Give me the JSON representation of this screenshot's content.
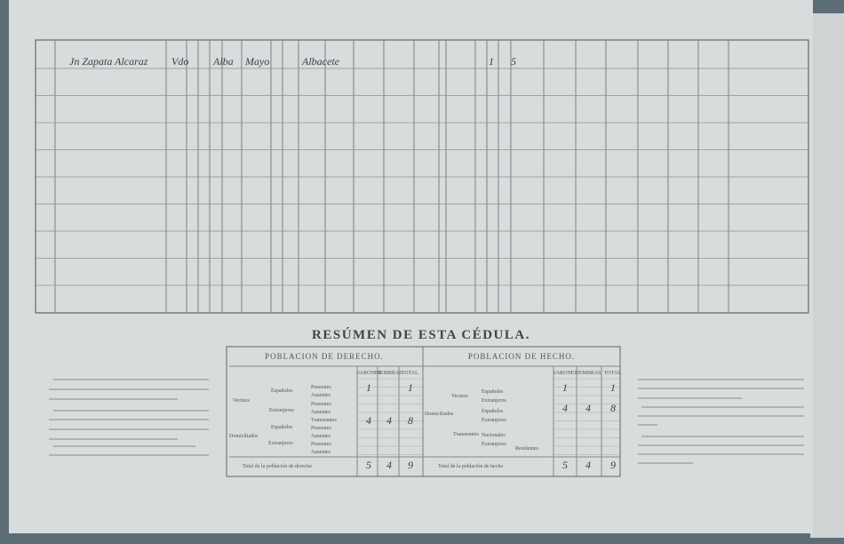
{
  "ledger": {
    "first_row": [
      "Jn Zapata Alcaraz",
      "Vdo",
      "Alba",
      "Mayo",
      "Albacete",
      "1",
      "5"
    ]
  },
  "resumen": {
    "title": "RESÚMEN DE ESTA CÉDULA.",
    "derecho": {
      "heading": "POBLACION DE DERECHO.",
      "columns": [
        "VARONES",
        "HEMBRAS",
        "TOTAL."
      ],
      "labels": [
        "Vecinos",
        "Domiciliados",
        "Españoles",
        "Extranjeros",
        "Españoles",
        "Extranjeros",
        "Presentes",
        "Ausentes",
        "Presentes",
        "Ausentes",
        "Transeuntes",
        "Presentes",
        "Ausentes",
        "Presentes",
        "Ausentes"
      ],
      "rows": [
        [
          1,
          null,
          1
        ],
        [
          4,
          4,
          8
        ]
      ],
      "total_label": "Total de la población de derecho",
      "total": [
        5,
        4,
        9
      ]
    },
    "hecho": {
      "heading": "POBLACION DE HECHO.",
      "columns": [
        "VARONES",
        "HEMBRAS",
        "TOTAL."
      ],
      "labels": [
        "Vecinos",
        "Domiciliados",
        "Españoles",
        "Extranjeros",
        "Españoles",
        "Extranjeros",
        "Transeuntes",
        "Nacionales",
        "Extranjeros",
        "Residentes"
      ],
      "rows": [
        [
          1,
          null,
          1
        ],
        [
          4,
          4,
          8
        ]
      ],
      "total_label": "Total de la población de hecho",
      "total": [
        5,
        4,
        9
      ]
    }
  }
}
